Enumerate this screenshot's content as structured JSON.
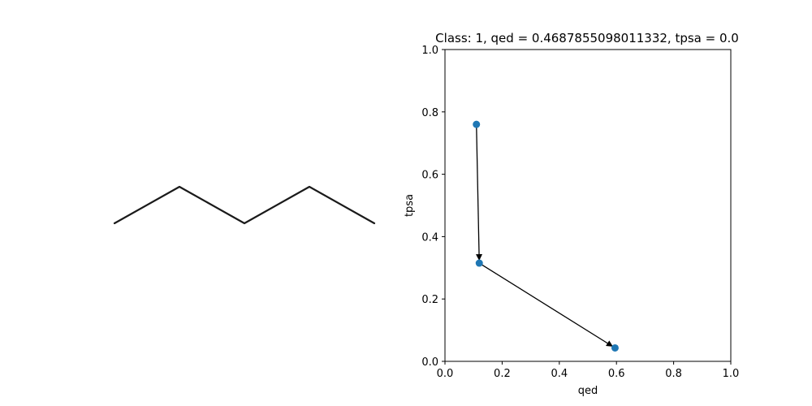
{
  "molecule": {
    "name": "skeletal-structure",
    "bonds": 4
  },
  "chart_data": {
    "type": "scatter",
    "title": "Class: 1, qed = 0.4687855098011332, tpsa = 0.0",
    "xlabel": "qed",
    "ylabel": "tpsa",
    "xlim": [
      0.0,
      1.0
    ],
    "ylim": [
      0.0,
      1.0
    ],
    "xticks": [
      "0.0",
      "0.2",
      "0.4",
      "0.6",
      "0.8",
      "1.0"
    ],
    "yticks": [
      "0.0",
      "0.2",
      "0.4",
      "0.6",
      "0.8",
      "1.0"
    ],
    "grid": false,
    "points": [
      {
        "x": 0.11,
        "y": 0.76
      },
      {
        "x": 0.12,
        "y": 0.315
      },
      {
        "x": 0.595,
        "y": 0.043
      }
    ],
    "arrows": [
      {
        "from": 0,
        "to": 1
      },
      {
        "from": 1,
        "to": 2
      }
    ],
    "marker_color": "#1f77b4",
    "arrow_color": "#000000"
  }
}
